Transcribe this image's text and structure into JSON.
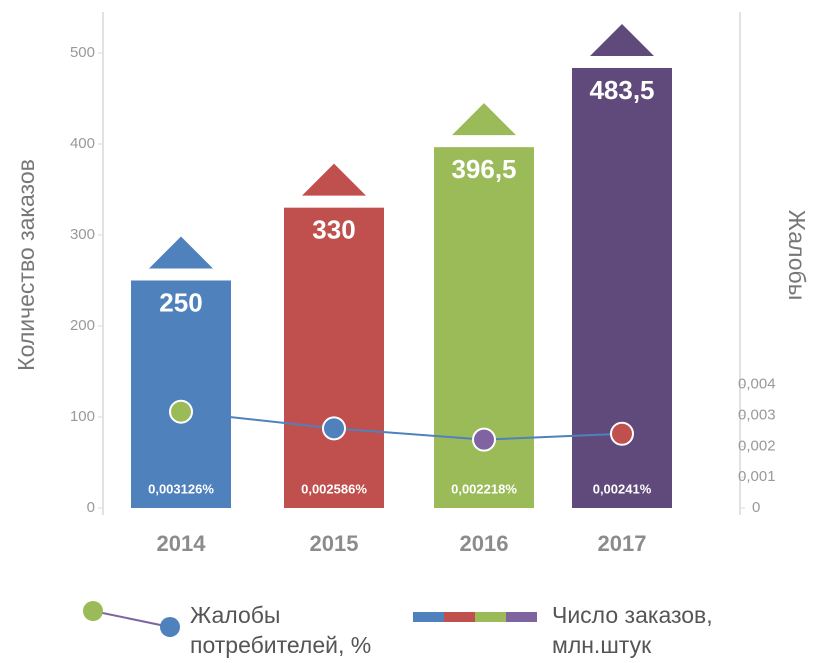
{
  "chart_data": {
    "type": "bar",
    "categories": [
      "2014",
      "2015",
      "2016",
      "2017"
    ],
    "ylabel": "Количество заказов",
    "y2label": "Жалобы",
    "ylim": [
      0,
      545
    ],
    "yticks": [
      0,
      100,
      200,
      300,
      400,
      500
    ],
    "y2lim": [
      0,
      0.0161
    ],
    "y2ticks": [
      0,
      {
        "value": 0.001,
        "label": "0,001"
      },
      {
        "value": 0.002,
        "label": "0,002"
      },
      {
        "value": 0.003,
        "label": "0,003"
      },
      {
        "value": 0.004,
        "label": "0,004"
      }
    ],
    "series": [
      {
        "name": "Число заказов, млн.штук",
        "type": "bar",
        "colors": [
          "#4f81bd",
          "#c0504d",
          "#9bbb59",
          "#604a7b"
        ],
        "values": [
          250,
          330,
          396.5,
          483.5
        ],
        "value_labels": [
          "250",
          "330",
          "396,5",
          "483,5"
        ]
      },
      {
        "name": "Жалобы потребителей, %",
        "type": "line",
        "axis": "y2",
        "color": "#4f81bd",
        "marker_colors": [
          "#9bbb59",
          "#4f81bd",
          "#8064a2",
          "#c0504d"
        ],
        "values": [
          0.003126,
          0.002586,
          0.002218,
          0.00241
        ],
        "value_labels": [
          "0,003126%",
          "0,002586%",
          "0,002218%",
          "0,00241%"
        ]
      }
    ]
  }
}
